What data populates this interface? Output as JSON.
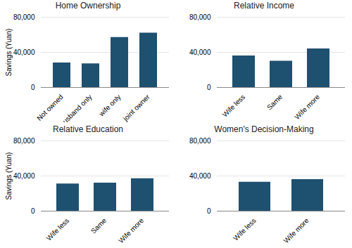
{
  "chart_data": [
    {
      "type": "bar",
      "title": "Home Ownership",
      "categories": [
        "Not owned",
        "husband only",
        "wife only",
        "joint owner"
      ],
      "values": [
        28000,
        27000,
        57000,
        62000
      ],
      "y_label": "Savings (Yuan)",
      "color": "#1e5070",
      "ylim": [
        0,
        80000
      ],
      "yticks": [
        0,
        {
          "value": 40000,
          "label": "40,000"
        },
        {
          "value": 80000,
          "label": "80,000"
        }
      ],
      "grid": true
    },
    {
      "type": "bar",
      "title": "Relative Income",
      "categories": [
        "Wife less",
        "Same",
        "Wife more"
      ],
      "values": [
        36000,
        30000,
        44000
      ],
      "color": "#1e5070",
      "ylim": [
        0,
        80000
      ],
      "yticks": [
        0,
        {
          "value": 40000,
          "label": "40,000"
        },
        {
          "value": 80000,
          "label": "80,000"
        }
      ],
      "grid": true
    },
    {
      "type": "bar",
      "title": "Relative Education",
      "categories": [
        "Wife less",
        "Same",
        "Wife more"
      ],
      "values": [
        31000,
        32000,
        37000
      ],
      "y_label": "Savings (Yuan)",
      "color": "#1e5070",
      "ylim": [
        0,
        80000
      ],
      "yticks": [
        0,
        {
          "value": 40000,
          "label": "40,000"
        },
        {
          "value": 80000,
          "label": "80,000"
        }
      ],
      "grid": true
    },
    {
      "type": "bar",
      "title": "Women's Decision-Making",
      "categories": [
        "Wife less",
        "Wife more"
      ],
      "values": [
        33000,
        36000
      ],
      "color": "#1e5070",
      "ylim": [
        0,
        80000
      ],
      "yticks": [
        0,
        {
          "value": 40000,
          "label": "40,000"
        },
        {
          "value": 80000,
          "label": "80,000"
        }
      ],
      "grid": true
    }
  ]
}
